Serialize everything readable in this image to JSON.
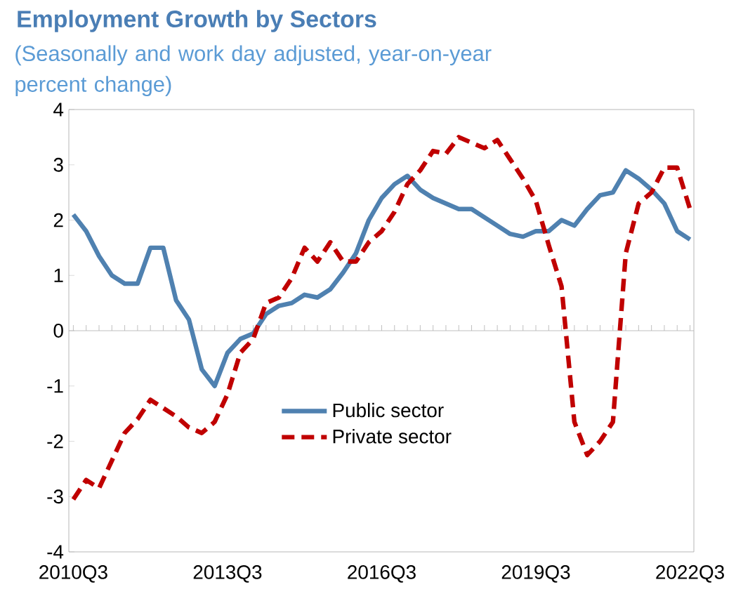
{
  "chart_data": {
    "type": "line",
    "title": "Employment Growth by Sectors",
    "subtitle": "(Seasonally and work day adjusted, year-on-year percent change)",
    "categories": [
      "2010Q3",
      null,
      null,
      null,
      null,
      null,
      null,
      null,
      null,
      null,
      null,
      null,
      "2013Q3",
      null,
      null,
      null,
      null,
      null,
      null,
      null,
      null,
      null,
      null,
      null,
      "2016Q3",
      null,
      null,
      null,
      null,
      null,
      null,
      null,
      null,
      null,
      null,
      null,
      "2019Q3",
      null,
      null,
      null,
      null,
      null,
      null,
      null,
      null,
      null,
      null,
      null,
      "2022Q3"
    ],
    "series": [
      {
        "name": "Public sector",
        "color": "#4f81b0",
        "line_style": "solid",
        "values": [
          2.1,
          1.8,
          1.35,
          1.0,
          0.85,
          0.85,
          1.5,
          1.5,
          0.55,
          0.2,
          -0.7,
          -1.0,
          -0.4,
          -0.15,
          -0.05,
          0.3,
          0.45,
          0.5,
          0.65,
          0.6,
          0.75,
          1.05,
          1.4,
          2.0,
          2.4,
          2.65,
          2.8,
          2.55,
          2.4,
          2.3,
          2.2,
          2.2,
          2.05,
          1.9,
          1.75,
          1.7,
          1.8,
          1.8,
          2.0,
          1.9,
          2.2,
          2.45,
          2.5,
          2.9,
          2.75,
          2.55,
          2.3,
          1.8,
          1.65
        ]
      },
      {
        "name": "Private sector",
        "color": "#c00000",
        "line_style": "dashed",
        "values": [
          -3.05,
          -2.7,
          -2.85,
          -2.35,
          -1.85,
          -1.6,
          -1.25,
          -1.4,
          -1.55,
          -1.75,
          -1.85,
          -1.65,
          -1.15,
          -0.4,
          -0.15,
          0.5,
          0.6,
          0.95,
          1.5,
          1.25,
          1.6,
          1.25,
          1.25,
          1.6,
          1.8,
          2.15,
          2.65,
          2.9,
          3.25,
          3.2,
          3.5,
          3.4,
          3.3,
          3.45,
          3.1,
          2.75,
          2.35,
          1.55,
          0.8,
          -1.65,
          -2.25,
          -2.0,
          -1.65,
          1.4,
          2.3,
          2.5,
          2.95,
          2.95,
          2.2
        ]
      }
    ],
    "ylim": [
      -4,
      4
    ],
    "yticks": [
      -4,
      -3,
      -2,
      -1,
      0,
      1,
      2,
      3,
      4
    ],
    "legend": "bottom",
    "ref_lines": [
      {
        "axis": "y",
        "value": 0,
        "color": "#b0b0b0"
      }
    ]
  }
}
